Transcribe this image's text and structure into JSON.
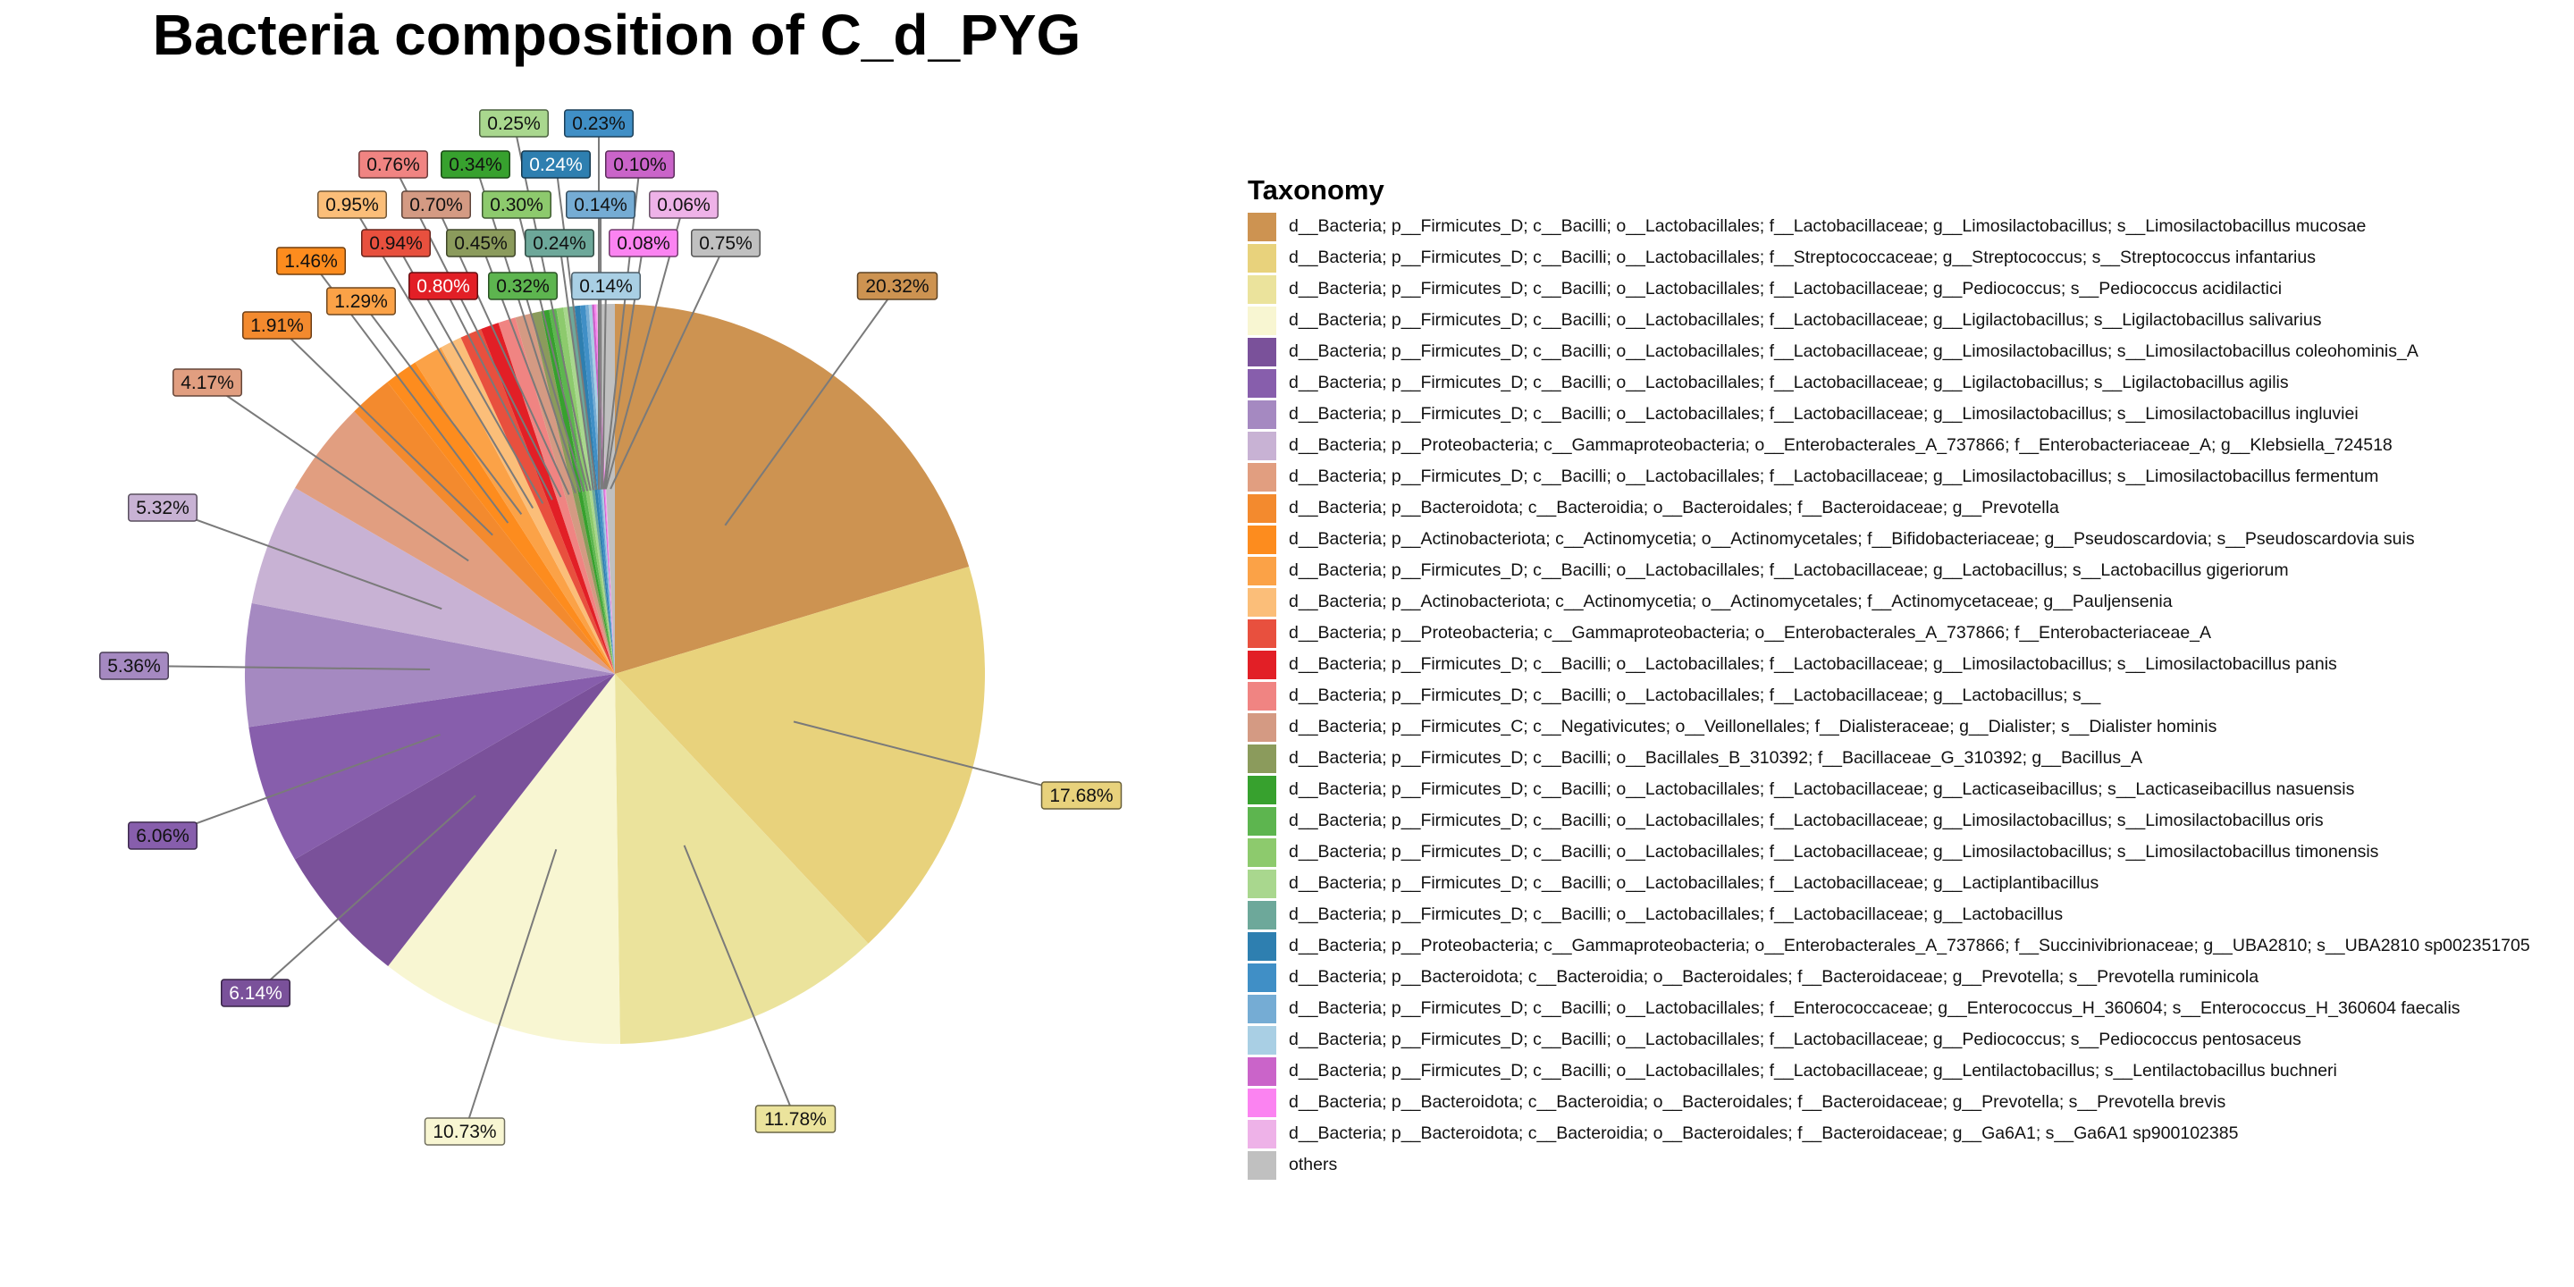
{
  "chart_data": {
    "type": "pie",
    "title": "Bacteria composition of C_d_PYG",
    "legend_title": "Taxonomy",
    "legend_position": "right",
    "slices": [
      {
        "label": "d__Bacteria; p__Firmicutes_D; c__Bacilli; o__Lactobacillales; f__Lactobacillaceae; g__Limosilactobacillus; s__Limosilactobacillus mucosae",
        "value": 20.32,
        "text": "20.32%",
        "color": "#CD9351"
      },
      {
        "label": "d__Bacteria; p__Firmicutes_D; c__Bacilli; o__Lactobacillales; f__Streptococcaceae; g__Streptococcus; s__Streptococcus infantarius",
        "value": 17.68,
        "text": "17.68%",
        "color": "#E8D27C"
      },
      {
        "label": "d__Bacteria; p__Firmicutes_D; c__Bacilli; o__Lactobacillales; f__Lactobacillaceae; g__Pediococcus; s__Pediococcus acidilactici",
        "value": 11.78,
        "text": "11.78%",
        "color": "#EBE39C"
      },
      {
        "label": "d__Bacteria; p__Firmicutes_D; c__Bacilli; o__Lactobacillales; f__Lactobacillaceae; g__Ligilactobacillus; s__Ligilactobacillus salivarius",
        "value": 10.73,
        "text": "10.73%",
        "color": "#F8F6D2"
      },
      {
        "label": "d__Bacteria; p__Firmicutes_D; c__Bacilli; o__Lactobacillales; f__Lactobacillaceae; g__Limosilactobacillus; s__Limosilactobacillus coleohominis_A",
        "value": 6.14,
        "text": "6.14%",
        "color": "#7A519A"
      },
      {
        "label": "d__Bacteria; p__Firmicutes_D; c__Bacilli; o__Lactobacillales; f__Lactobacillaceae; g__Ligilactobacillus; s__Ligilactobacillus agilis",
        "value": 6.06,
        "text": "6.06%",
        "color": "#875EAC"
      },
      {
        "label": "d__Bacteria; p__Firmicutes_D; c__Bacilli; o__Lactobacillales; f__Lactobacillaceae; g__Limosilactobacillus; s__Limosilactobacillus ingluviei",
        "value": 5.36,
        "text": "5.36%",
        "color": "#A589C1"
      },
      {
        "label": "d__Bacteria; p__Proteobacteria; c__Gammaproteobacteria; o__Enterobacterales_A_737866; f__Enterobacteriaceae_A; g__Klebsiella_724518",
        "value": 5.32,
        "text": "5.32%",
        "color": "#C8B2D4"
      },
      {
        "label": "d__Bacteria; p__Firmicutes_D; c__Bacilli; o__Lactobacillales; f__Lactobacillaceae; g__Limosilactobacillus; s__Limosilactobacillus fermentum",
        "value": 4.17,
        "text": "4.17%",
        "color": "#E19E80"
      },
      {
        "label": "d__Bacteria; p__Bacteroidota; c__Bacteroidia; o__Bacteroidales; f__Bacteroidaceae; g__Prevotella",
        "value": 1.91,
        "text": "1.91%",
        "color": "#F38A2E"
      },
      {
        "label": "d__Bacteria; p__Actinobacteriota; c__Actinomycetia; o__Actinomycetales; f__Bifidobacteriaceae; g__Pseudoscardovia; s__Pseudoscardovia suis",
        "value": 1.46,
        "text": "1.46%",
        "color": "#FD8C1E"
      },
      {
        "label": "d__Bacteria; p__Firmicutes_D; c__Bacilli; o__Lactobacillales; f__Lactobacillaceae; g__Lactobacillus; s__Lactobacillus gigeriorum",
        "value": 1.29,
        "text": "1.29%",
        "color": "#FBA247"
      },
      {
        "label": "d__Bacteria; p__Actinobacteriota; c__Actinomycetia; o__Actinomycetales; f__Actinomycetaceae; g__Pauljensenia",
        "value": 0.95,
        "text": "0.95%",
        "color": "#FBBE79"
      },
      {
        "label": "d__Bacteria; p__Proteobacteria; c__Gammaproteobacteria; o__Enterobacterales_A_737866; f__Enterobacteriaceae_A",
        "value": 0.94,
        "text": "0.94%",
        "color": "#E8503E"
      },
      {
        "label": "d__Bacteria; p__Firmicutes_D; c__Bacilli; o__Lactobacillales; f__Lactobacillaceae; g__Limosilactobacillus; s__Limosilactobacillus panis",
        "value": 0.8,
        "text": "0.80%",
        "color": "#E21F26"
      },
      {
        "label": "d__Bacteria; p__Firmicutes_D; c__Bacilli; o__Lactobacillales; f__Lactobacillaceae; g__Lactobacillus; s__",
        "value": 0.76,
        "text": "0.76%",
        "color": "#F08482"
      },
      {
        "label": "d__Bacteria; p__Firmicutes_C; c__Negativicutes; o__Veillonellales; f__Dialisteraceae; g__Dialister; s__Dialister hominis",
        "value": 0.7,
        "text": "0.70%",
        "color": "#D49A83"
      },
      {
        "label": "d__Bacteria; p__Firmicutes_D; c__Bacilli; o__Bacillales_B_310392; f__Bacillaceae_G_310392; g__Bacillus_A",
        "value": 0.45,
        "text": "0.45%",
        "color": "#8B9B5C"
      },
      {
        "label": "d__Bacteria; p__Firmicutes_D; c__Bacilli; o__Lactobacillales; f__Lactobacillaceae; g__Lacticaseibacillus; s__Lacticaseibacillus nasuensis",
        "value": 0.34,
        "text": "0.34%",
        "color": "#37A12E"
      },
      {
        "label": "d__Bacteria; p__Firmicutes_D; c__Bacilli; o__Lactobacillales; f__Lactobacillaceae; g__Limosilactobacillus; s__Limosilactobacillus oris",
        "value": 0.32,
        "text": "0.32%",
        "color": "#5DB54F"
      },
      {
        "label": "d__Bacteria; p__Firmicutes_D; c__Bacilli; o__Lactobacillales; f__Lactobacillaceae; g__Limosilactobacillus; s__Limosilactobacillus timonensis",
        "value": 0.3,
        "text": "0.30%",
        "color": "#8DCA6D"
      },
      {
        "label": "d__Bacteria; p__Firmicutes_D; c__Bacilli; o__Lactobacillales; f__Lactobacillaceae; g__Lactiplantibacillus",
        "value": 0.25,
        "text": "0.25%",
        "color": "#A9D78E"
      },
      {
        "label": "d__Bacteria; p__Firmicutes_D; c__Bacilli; o__Lactobacillales; f__Lactobacillaceae; g__Lactobacillus",
        "value": 0.24,
        "text": "0.24%",
        "color": "#6DA89A"
      },
      {
        "label": "d__Bacteria; p__Proteobacteria; c__Gammaproteobacteria; o__Enterobacterales_A_737866; f__Succinivibrionaceae; g__UBA2810; s__UBA2810 sp002351705",
        "value": 0.24,
        "text": "0.24%",
        "color": "#2E7FB0"
      },
      {
        "label": "d__Bacteria; p__Bacteroidota; c__Bacteroidia; o__Bacteroidales; f__Bacteroidaceae; g__Prevotella; s__Prevotella ruminicola",
        "value": 0.23,
        "text": "0.23%",
        "color": "#408FC6"
      },
      {
        "label": "d__Bacteria; p__Firmicutes_D; c__Bacilli; o__Lactobacillales; f__Enterococcaceae; g__Enterococcus_H_360604; s__Enterococcus_H_360604 faecalis",
        "value": 0.14,
        "text": "0.14%",
        "color": "#75ACD4"
      },
      {
        "label": "d__Bacteria; p__Firmicutes_D; c__Bacilli; o__Lactobacillales; f__Lactobacillaceae; g__Pediococcus; s__Pediococcus pentosaceus",
        "value": 0.14,
        "text": "0.14%",
        "color": "#A9CFE4"
      },
      {
        "label": "d__Bacteria; p__Firmicutes_D; c__Bacilli; o__Lactobacillales; f__Lactobacillaceae; g__Lentilactobacillus; s__Lentilactobacillus buchneri",
        "value": 0.1,
        "text": "0.10%",
        "color": "#CA64C9"
      },
      {
        "label": "d__Bacteria; p__Bacteroidota; c__Bacteroidia; o__Bacteroidales; f__Bacteroidaceae; g__Prevotella; s__Prevotella brevis",
        "value": 0.08,
        "text": "0.08%",
        "color": "#FB83F1"
      },
      {
        "label": "d__Bacteria; p__Bacteroidota; c__Bacteroidia; o__Bacteroidales; f__Bacteroidaceae; g__Ga6A1; s__Ga6A1 sp900102385",
        "value": 0.06,
        "text": "0.06%",
        "color": "#EEB2E8"
      },
      {
        "label": "others",
        "value": 0.75,
        "text": "0.75%",
        "color": "#C0C0C0"
      }
    ]
  }
}
